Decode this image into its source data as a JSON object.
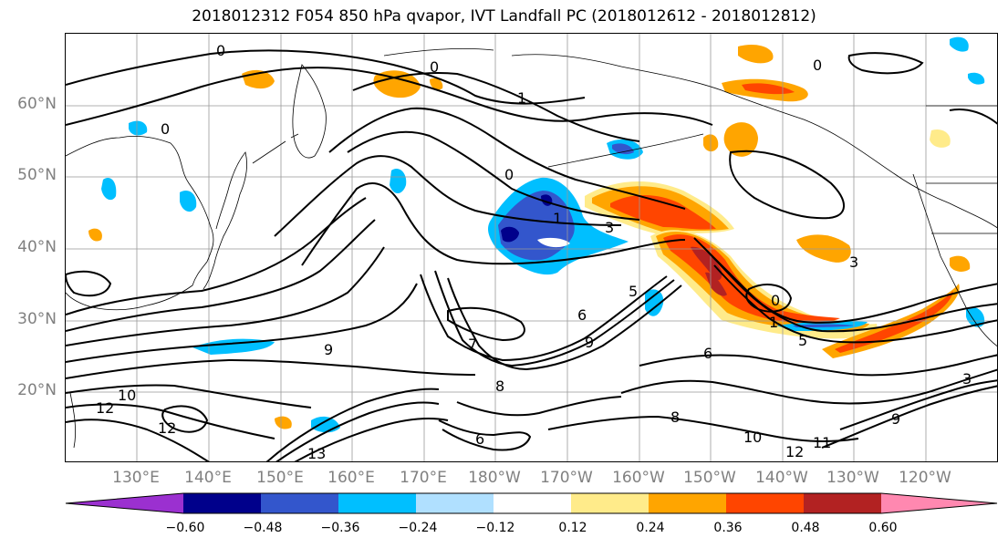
{
  "title": "2018012312 F054 850 hPa qvapor, IVT Landfall PC (2018012612 - 2018012812)",
  "lat_labels": [
    "60°N",
    "50°N",
    "40°N",
    "30°N",
    "20°N"
  ],
  "lon_labels": [
    "130°E",
    "140°E",
    "150°E",
    "160°E",
    "170°E",
    "180°W",
    "170°W",
    "160°W",
    "150°W",
    "140°W",
    "130°W",
    "120°W"
  ],
  "contour_labels": [
    "0",
    "0",
    "1",
    "0",
    "0",
    "1",
    "3",
    "6",
    "5",
    "9",
    "7",
    "9",
    "8",
    "10",
    "12",
    "12",
    "13",
    "6",
    "8",
    "10",
    "12",
    "0",
    "1",
    "5",
    "6",
    "3",
    "3",
    "11",
    "9",
    "0"
  ],
  "colorbar": {
    "colors": [
      "#9b30d0",
      "#00008b",
      "#3356cc",
      "#00bfff",
      "#b0e0ff",
      "#ffffff",
      "#ffeb8a",
      "#ffa500",
      "#ff4500",
      "#b22222",
      "#ff88b0"
    ],
    "tick_labels": [
      "−0.60",
      "−0.48",
      "−0.36",
      "−0.24",
      "−0.12",
      "0.12",
      "0.24",
      "0.36",
      "0.48",
      "0.60"
    ]
  },
  "map_colors": {
    "positive_light": "#ffeb8a",
    "positive_mid": "#ffa500",
    "positive_strong": "#ff4500",
    "negative_light": "#b0e0ff",
    "negative_mid": "#00bfff",
    "negative_strong": "#3356cc",
    "negative_max": "#00008b"
  }
}
